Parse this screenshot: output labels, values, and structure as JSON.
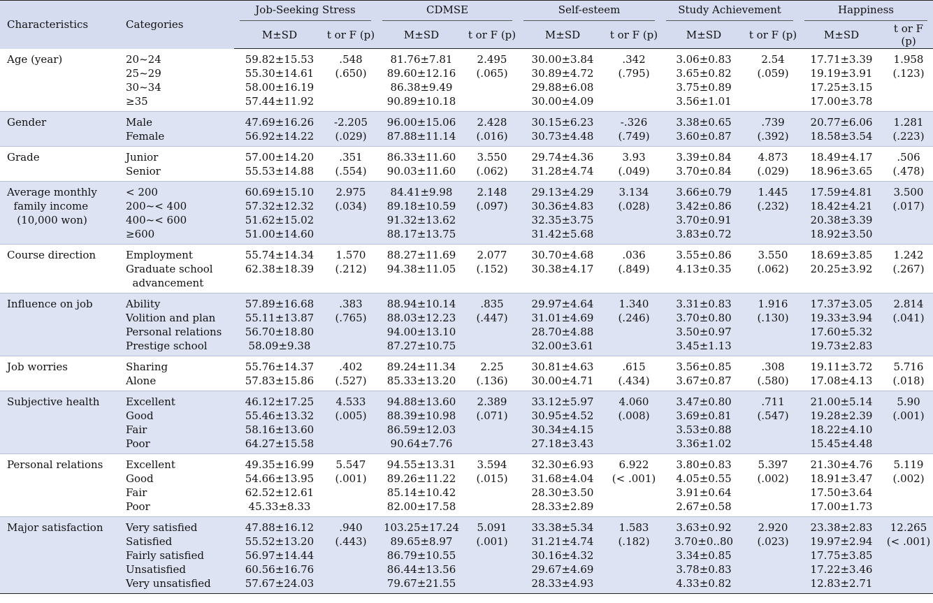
{
  "header": {
    "characteristics": "Characteristics",
    "categories": "Categories",
    "groups": [
      "Job-Seeking  Stress",
      "CDMSE",
      "Self-esteem",
      "Study  Achievement",
      "Happiness"
    ],
    "msd": "M±SD",
    "stat": "t or F (p)"
  },
  "rows": [
    {
      "char": "Age (year)",
      "cats": "20~24\n25~29\n30~34\n≥35",
      "cols": [
        {
          "msd": "59.82±15.53\n55.30±14.61\n58.00±16.19\n57.44±11.92",
          "stat": ".548\n(.650)"
        },
        {
          "msd": "81.76±7.81\n89.60±12.16\n86.38±9.49\n90.89±10.18",
          "stat": "2.495\n(.065)"
        },
        {
          "msd": "30.00±3.84\n30.89±4.72\n29.88±6.08\n30.00±4.09",
          "stat": ".342\n(.795)"
        },
        {
          "msd": "3.06±0.83\n3.65±0.82\n3.75±0.89\n3.56±1.01",
          "stat": "2.54\n(.059)"
        },
        {
          "msd": "17.71±3.39\n19.19±3.91\n17.25±3.15\n17.00±3.78",
          "stat": "1.958\n(.123)"
        }
      ]
    },
    {
      "char": "Gender",
      "cats": "Male\nFemale",
      "cols": [
        {
          "msd": "47.69±16.26\n56.92±14.22",
          "stat": "-2.205\n(.029)"
        },
        {
          "msd": "96.00±15.06\n87.88±11.14",
          "stat": "2.428\n(.016)"
        },
        {
          "msd": "30.15±6.23\n30.73±4.48",
          "stat": "-.326\n(.749)"
        },
        {
          "msd": "3.38±0.65\n3.60±0.87",
          "stat": ".739\n(.392)"
        },
        {
          "msd": "20.77±6.06\n18.58±3.54",
          "stat": "1.281\n(.223)"
        }
      ]
    },
    {
      "char": "Grade",
      "cats": "Junior\nSenior",
      "cols": [
        {
          "msd": "57.00±14.20\n55.53±14.88",
          "stat": ".351\n(.554)"
        },
        {
          "msd": "86.33±11.60\n90.03±11.60",
          "stat": "3.550\n(.062)"
        },
        {
          "msd": "29.74±4.36\n31.28±4.74",
          "stat": "3.93\n(.049)"
        },
        {
          "msd": "3.39±0.84\n3.70±0.84",
          "stat": "4.873\n(.029)"
        },
        {
          "msd": "18.49±4.17\n18.96±3.65",
          "stat": ".506\n(.478)"
        }
      ]
    },
    {
      "char": "Average monthly\n  family income\n   (10,000 won)",
      "cats": "< 200\n200~< 400\n400~< 600\n≥600",
      "cols": [
        {
          "msd": "60.69±15.10\n57.32±12.32\n51.62±15.02\n51.00±14.60",
          "stat": "2.975\n(.034)"
        },
        {
          "msd": "84.41±9.98\n89.18±10.59\n91.32±13.62\n88.17±13.75",
          "stat": "2.148\n(.097)"
        },
        {
          "msd": "29.13±4.29\n30.36±4.83\n32.35±3.75\n31.42±5.68",
          "stat": "3.134\n(.028)"
        },
        {
          "msd": "3.66±0.79\n3.42±0.86\n3.70±0.91\n3.83±0.72",
          "stat": "1.445\n(.232)"
        },
        {
          "msd": "17.59±4.81\n18.42±4.21\n20.38±3.39\n18.92±3.50",
          "stat": "3.500\n(.017)"
        }
      ]
    },
    {
      "char": "Course direction",
      "cats": "Employment\nGraduate school\n  advancement",
      "cols": [
        {
          "msd": "55.74±14.34\n62.38±18.39",
          "stat": "1.570\n(.212)"
        },
        {
          "msd": "88.27±11.69\n94.38±11.05",
          "stat": "2.077\n(.152)"
        },
        {
          "msd": "30.70±4.68\n30.38±4.17",
          "stat": ".036\n(.849)"
        },
        {
          "msd": "3.55±0.86\n4.13±0.35",
          "stat": "3.550\n(.062)"
        },
        {
          "msd": "18.69±3.85\n20.25±3.92",
          "stat": "1.242\n(.267)"
        }
      ]
    },
    {
      "char": "Influence on job",
      "cats": "Ability\nVolition and plan\nPersonal relations\nPrestige school",
      "cols": [
        {
          "msd": "57.89±16.68\n55.11±13.87\n56.70±18.80\n58.09±9.38",
          "stat": ".383\n(.765)"
        },
        {
          "msd": "88.94±10.14\n88.03±12.23\n94.00±13.10\n87.27±10.75",
          "stat": ".835\n(.447)"
        },
        {
          "msd": "29.97±4.64\n31.01±4.69\n28.70±4.88\n32.00±3.61",
          "stat": "1.340\n(.246)"
        },
        {
          "msd": "3.31±0.83\n3.70±0.80\n3.50±0.97\n3.45±1.13",
          "stat": "1.916\n(.130)"
        },
        {
          "msd": "17.37±3.05\n19.33±3.94\n17.60±5.32\n19.73±2.83",
          "stat": "2.814\n(.041)"
        }
      ]
    },
    {
      "char": "Job worries",
      "cats": "Sharing\nAlone",
      "cols": [
        {
          "msd": "55.76±14.37\n57.83±15.86",
          "stat": ".402\n(.527)"
        },
        {
          "msd": "89.24±11.34\n85.33±13.20",
          "stat": "2.25\n(.136)"
        },
        {
          "msd": "30.81±4.63\n30.00±4.71",
          "stat": ".615\n(.434)"
        },
        {
          "msd": "3.56±0.85\n3.67±0.87",
          "stat": ".308\n(.580)"
        },
        {
          "msd": "19.11±3.72\n17.08±4.13",
          "stat": "5.716\n(.018)"
        }
      ]
    },
    {
      "char": "Subjective health",
      "cats": "Excellent\nGood\nFair\nPoor",
      "cols": [
        {
          "msd": "46.12±17.25\n55.46±13.32\n58.16±13.60\n64.27±15.58",
          "stat": "4.533\n(.005)"
        },
        {
          "msd": "94.88±13.60\n88.39±10.98\n86.59±12.03\n90.64±7.76",
          "stat": "2.389\n(.071)"
        },
        {
          "msd": "33.12±5.97\n30.95±4.52\n30.34±4.15\n27.18±3.43",
          "stat": "4.060\n(.008)"
        },
        {
          "msd": "3.47±0.80\n3.69±0.81\n3.53±0.88\n3.36±1.02",
          "stat": ".711\n(.547)"
        },
        {
          "msd": "21.00±5.14\n19.28±2.39\n18.22±4.10\n15.45±4.48",
          "stat": "5.90\n(.001)"
        }
      ]
    },
    {
      "char": "Personal relations",
      "cats": "Excellent\nGood\nFair\nPoor",
      "cols": [
        {
          "msd": "49.35±16.99\n54.66±13.95\n62.52±12.61\n45.33±8.33",
          "stat": "5.547\n(.001)"
        },
        {
          "msd": "94.55±13.31\n89.26±11.22\n85.14±10.42\n82.00±17.58",
          "stat": "3.594\n(.015)"
        },
        {
          "msd": "32.30±6.93\n31.68±4.04\n28.30±3.50\n28.33±2.89",
          "stat": "6.922\n(< .001)"
        },
        {
          "msd": "3.80±0.83\n4.05±0.55\n3.91±0.64\n2.67±0.58",
          "stat": "5.397\n(.002)"
        },
        {
          "msd": "21.30±4.76\n18.91±3.47\n17.50±3.64\n17.00±1.73",
          "stat": "5.119\n(.002)"
        }
      ]
    },
    {
      "char": "Major satisfaction",
      "cats": "Very satisfied\nSatisfied\nFairly satisfied\nUnsatisfied\nVery unsatisfied",
      "cols": [
        {
          "msd": "47.88±16.12\n55.52±13.20\n56.97±14.44\n60.56±16.76\n57.67±24.03",
          "stat": ".940\n(.443)"
        },
        {
          "msd": "103.25±17.24\n89.65±8.97\n86.79±10.55\n86.44±13.56\n79.67±21.55",
          "stat": "5.091\n(.001)"
        },
        {
          "msd": "33.38±5.34\n31.21±4.74\n30.16±4.32\n29.67±4.69\n28.33±4.93",
          "stat": "1.583\n(.182)"
        },
        {
          "msd": "3.63±0.92\n3.70±0..80\n3.34±0.85\n3.78±0.83\n4.33±0.82",
          "stat": "2.920\n(.023)"
        },
        {
          "msd": "23.38±2.83\n19.97±2.94\n17.75±3.85\n17.22±3.46\n12.83±2.71",
          "stat": "12.265\n(< .001)"
        }
      ]
    }
  ]
}
